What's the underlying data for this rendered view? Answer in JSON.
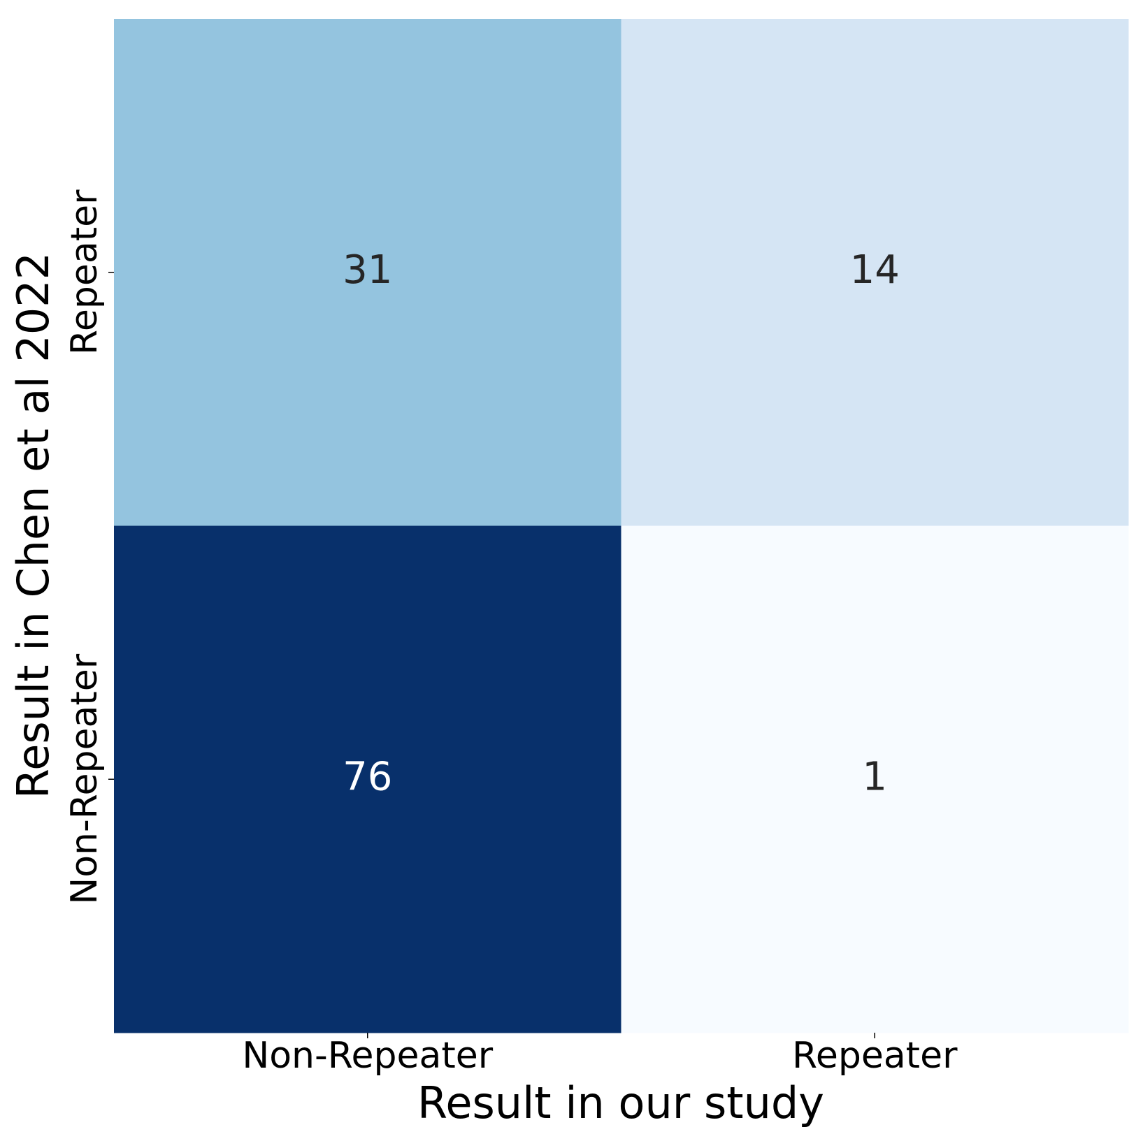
{
  "chart_data": {
    "type": "heatmap",
    "x_categories": [
      "Non-Repeater",
      "Repeater"
    ],
    "y_categories": [
      "Repeater",
      "Non-Repeater"
    ],
    "values": [
      [
        31,
        14
      ],
      [
        76,
        1
      ]
    ],
    "xlabel": "Result in our study",
    "ylabel": "Result in Chen et al 2022",
    "colormap": "Blues"
  }
}
